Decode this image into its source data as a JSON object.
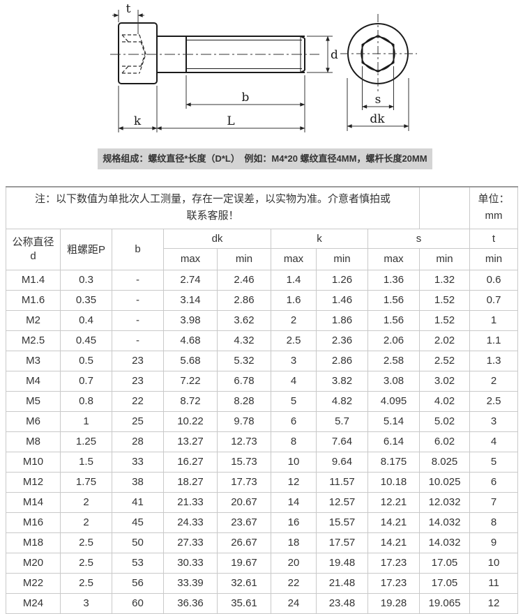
{
  "drawing": {
    "labels": {
      "t": "t",
      "d": "d",
      "b": "b",
      "k": "k",
      "L": "L",
      "s": "s",
      "dk": "dk"
    }
  },
  "caption": "规格组成：螺纹直径*长度（D*L）　例如：M4*20 螺纹直径4MM，螺杆长度20MM",
  "table": {
    "note_line1": "注：以下数值为单批次人工测量，存在一定误差，以实物为准。介意者慎拍或",
    "note_line2": "联系客服！",
    "unit_label": "单位：",
    "unit_value": "mm",
    "headers": {
      "diameter_line1": "公称直径",
      "diameter_line2": "d",
      "pitch": "粗螺距P",
      "b": "b",
      "dk": "dk",
      "k": "k",
      "s": "s",
      "t": "t",
      "max": "max",
      "min": "min"
    },
    "rows": [
      [
        "M1.4",
        "0.3",
        "-",
        "2.74",
        "2.46",
        "1.4",
        "1.26",
        "1.36",
        "1.32",
        "0.6"
      ],
      [
        "M1.6",
        "0.35",
        "-",
        "3.14",
        "2.86",
        "1.6",
        "1.46",
        "1.56",
        "1.52",
        "0.7"
      ],
      [
        "M2",
        "0.4",
        "-",
        "3.98",
        "3.62",
        "2",
        "1.86",
        "1.56",
        "1.52",
        "1"
      ],
      [
        "M2.5",
        "0.45",
        "-",
        "4.68",
        "4.32",
        "2.5",
        "2.36",
        "2.06",
        "2.02",
        "1.1"
      ],
      [
        "M3",
        "0.5",
        "23",
        "5.68",
        "5.32",
        "3",
        "2.86",
        "2.58",
        "2.52",
        "1.3"
      ],
      [
        "M4",
        "0.7",
        "23",
        "7.22",
        "6.78",
        "4",
        "3.82",
        "3.08",
        "3.02",
        "2"
      ],
      [
        "M5",
        "0.8",
        "22",
        "8.72",
        "8.28",
        "5",
        "4.82",
        "4.095",
        "4.02",
        "2.5"
      ],
      [
        "M6",
        "1",
        "25",
        "10.22",
        "9.78",
        "6",
        "5.7",
        "5.14",
        "5.02",
        "3"
      ],
      [
        "M8",
        "1.25",
        "28",
        "13.27",
        "12.73",
        "8",
        "7.64",
        "6.14",
        "6.02",
        "4"
      ],
      [
        "M10",
        "1.5",
        "33",
        "16.27",
        "15.73",
        "10",
        "9.64",
        "8.175",
        "8.025",
        "5"
      ],
      [
        "M12",
        "1.75",
        "38",
        "18.27",
        "17.73",
        "12",
        "11.57",
        "10.18",
        "10.025",
        "6"
      ],
      [
        "M14",
        "2",
        "41",
        "21.33",
        "20.67",
        "14",
        "12.57",
        "12.21",
        "12.032",
        "7"
      ],
      [
        "M16",
        "2",
        "45",
        "24.33",
        "23.67",
        "16",
        "15.57",
        "14.21",
        "14.032",
        "8"
      ],
      [
        "M18",
        "2.5",
        "50",
        "27.33",
        "26.67",
        "18",
        "17.57",
        "14.21",
        "14.032",
        "9"
      ],
      [
        "M20",
        "2.5",
        "53",
        "30.33",
        "19.67",
        "20",
        "19.48",
        "17.23",
        "17.05",
        "10"
      ],
      [
        "M22",
        "2.5",
        "56",
        "33.39",
        "32.61",
        "22",
        "21.48",
        "17.23",
        "17.05",
        "11"
      ],
      [
        "M24",
        "3",
        "60",
        "36.36",
        "35.61",
        "24",
        "23.48",
        "19.28",
        "19.065",
        "12"
      ]
    ]
  }
}
